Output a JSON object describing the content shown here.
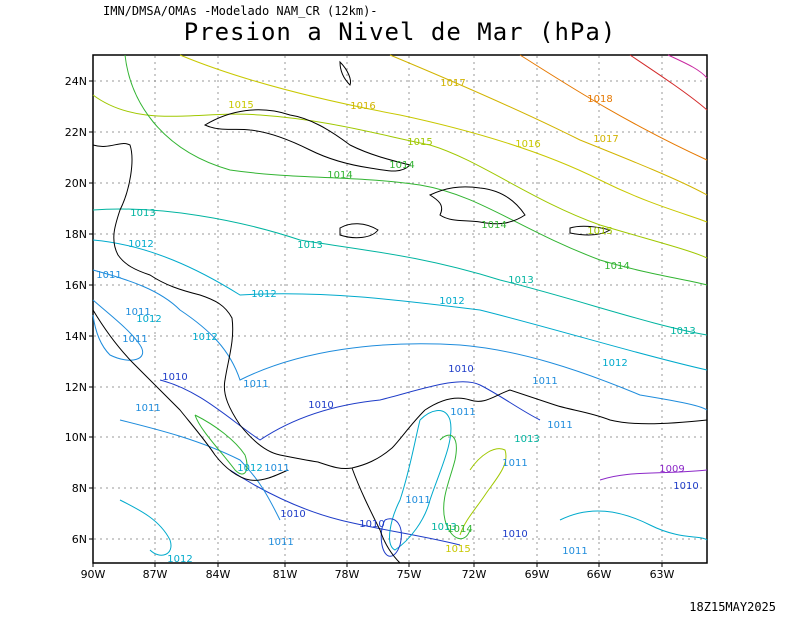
{
  "header": {
    "source": "IMN/DMSA/OMAs -Modelado NAM_CR (12km)-",
    "title": "Presion a Nivel de Mar (hPa)",
    "valid_time": "18Z15MAY2025"
  },
  "axes": {
    "lon_labels": [
      "90W",
      "87W",
      "84W",
      "81W",
      "78W",
      "75W",
      "72W",
      "69W",
      "66W",
      "63W"
    ],
    "lat_labels": [
      "24N",
      "22N",
      "20N",
      "18N",
      "16N",
      "14N",
      "12N",
      "10N",
      "8N",
      "6N"
    ]
  },
  "contour_labels": [
    {
      "text": "1017",
      "color": "#d2b400"
    },
    {
      "text": "1018",
      "color": "#e67800"
    },
    {
      "text": "1015",
      "color": "#c8c800"
    },
    {
      "text": "1016",
      "color": "#d2b400"
    },
    {
      "text": "1017",
      "color": "#d2b400"
    },
    {
      "text": "1015",
      "color": "#a0c800"
    },
    {
      "text": "1016",
      "color": "#c8c800"
    },
    {
      "text": "1014",
      "color": "#32b432"
    },
    {
      "text": "1014",
      "color": "#32b432"
    },
    {
      "text": "1013",
      "color": "#00b4a0"
    },
    {
      "text": "1013",
      "color": "#00b4a0"
    },
    {
      "text": "1014",
      "color": "#32b432"
    },
    {
      "text": "1015",
      "color": "#a0c800"
    },
    {
      "text": "1012",
      "color": "#00aacc"
    },
    {
      "text": "1014",
      "color": "#32b432"
    },
    {
      "text": "1011",
      "color": "#1e8cdc"
    },
    {
      "text": "1013",
      "color": "#00b4a0"
    },
    {
      "text": "1012",
      "color": "#00aacc"
    },
    {
      "text": "1012",
      "color": "#00aacc"
    },
    {
      "text": "1013",
      "color": "#00b4a0"
    },
    {
      "text": "1011",
      "color": "#1e8cdc"
    },
    {
      "text": "1012",
      "color": "#00aacc"
    },
    {
      "text": "1011",
      "color": "#1e8cdc"
    },
    {
      "text": "1012",
      "color": "#00aacc"
    },
    {
      "text": "1012",
      "color": "#00aacc"
    },
    {
      "text": "1010",
      "color": "#1e3cc8"
    },
    {
      "text": "1011",
      "color": "#1e8cdc"
    },
    {
      "text": "1010",
      "color": "#1e3cc8"
    },
    {
      "text": "1011",
      "color": "#1e8cdc"
    },
    {
      "text": "1010",
      "color": "#1e3cc8"
    },
    {
      "text": "1011",
      "color": "#1e8cdc"
    },
    {
      "text": "1011",
      "color": "#1e8cdc"
    },
    {
      "text": "1011",
      "color": "#1e8cdc"
    },
    {
      "text": "1013",
      "color": "#00b4a0"
    },
    {
      "text": "1011",
      "color": "#1e8cdc"
    },
    {
      "text": "1012",
      "color": "#00aacc"
    },
    {
      "text": "1011",
      "color": "#1e8cdc"
    },
    {
      "text": "1009",
      "color": "#8c28c8"
    },
    {
      "text": "1010",
      "color": "#1e3cc8"
    },
    {
      "text": "1011",
      "color": "#1e8cdc"
    },
    {
      "text": "1010",
      "color": "#1e3cc8"
    },
    {
      "text": "1010",
      "color": "#1e3cc8"
    },
    {
      "text": "1013",
      "color": "#00b4a0"
    },
    {
      "text": "1014",
      "color": "#32b432"
    },
    {
      "text": "1015",
      "color": "#c8c800"
    },
    {
      "text": "1010",
      "color": "#1e3cc8"
    },
    {
      "text": "1011",
      "color": "#1e8cdc"
    },
    {
      "text": "1011",
      "color": "#1e8cdc"
    },
    {
      "text": "1012",
      "color": "#00aacc"
    }
  ]
}
